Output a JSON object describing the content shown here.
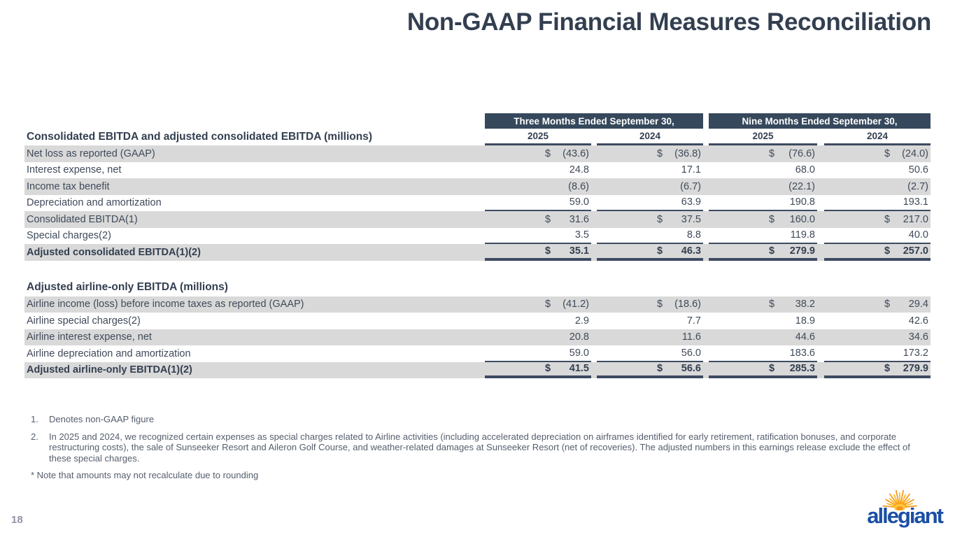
{
  "title": "Non-GAAP Financial Measures Reconciliation",
  "page_number": "18",
  "colors": {
    "navy_text": "#333F50",
    "header_bar_bg": "#36485C",
    "row_shade": "#D9D9D9",
    "rule_line": "#3D4B61",
    "logo_blue": "#1B4FA5",
    "sun_orange": "#F7941D",
    "sun_yellow": "#FDB913"
  },
  "table": {
    "period_headers": [
      "Three Months Ended September 30,",
      "Nine Months Ended September 30,"
    ],
    "year_headers": [
      "2025",
      "2024",
      "2025",
      "2024"
    ],
    "sections": [
      {
        "heading": "Consolidated EBITDA and adjusted consolidated EBITDA (millions)",
        "rows": [
          {
            "label": "Net loss as reported (GAAP)",
            "shaded": true,
            "bold": false,
            "dollar": true,
            "underline": "none",
            "values": [
              "(43.6)",
              "(36.8)",
              "(76.6)",
              "(24.0)"
            ]
          },
          {
            "label": "Interest expense, net",
            "shaded": false,
            "bold": false,
            "dollar": false,
            "underline": "none",
            "values": [
              "24.8",
              "17.1",
              "68.0",
              "50.6"
            ]
          },
          {
            "label": "Income tax benefit",
            "shaded": true,
            "bold": false,
            "dollar": false,
            "underline": "none",
            "values": [
              "(8.6)",
              "(6.7)",
              "(22.1)",
              "(2.7)"
            ]
          },
          {
            "label": "Depreciation and amortization",
            "shaded": false,
            "bold": false,
            "dollar": false,
            "underline": "single",
            "values": [
              "59.0",
              "63.9",
              "190.8",
              "193.1"
            ]
          },
          {
            "label": "Consolidated EBITDA(1)",
            "shaded": true,
            "bold": false,
            "dollar": true,
            "underline": "none",
            "values": [
              "31.6",
              "37.5",
              "160.0",
              "217.0"
            ]
          },
          {
            "label": "Special charges(2)",
            "shaded": false,
            "bold": false,
            "dollar": false,
            "underline": "single",
            "values": [
              "3.5",
              "8.8",
              "119.8",
              "40.0"
            ]
          },
          {
            "label": "Adjusted consolidated EBITDA(1)(2)",
            "shaded": true,
            "bold": true,
            "dollar": true,
            "underline": "total",
            "values": [
              "35.1",
              "46.3",
              "279.9",
              "257.0"
            ]
          }
        ]
      },
      {
        "heading": "Adjusted airline-only EBITDA (millions)",
        "rows": [
          {
            "label": "Airline income (loss) before income taxes as reported (GAAP)",
            "shaded": true,
            "bold": false,
            "dollar": true,
            "underline": "none",
            "values": [
              "(41.2)",
              "(18.6)",
              "38.2",
              "29.4"
            ]
          },
          {
            "label": "Airline special charges(2)",
            "shaded": false,
            "bold": false,
            "dollar": false,
            "underline": "none",
            "values": [
              "2.9",
              "7.7",
              "18.9",
              "42.6"
            ]
          },
          {
            "label": "Airline interest expense, net",
            "shaded": true,
            "bold": false,
            "dollar": false,
            "underline": "none",
            "values": [
              "20.8",
              "11.6",
              "44.6",
              "34.6"
            ]
          },
          {
            "label": "Airline depreciation and amortization",
            "shaded": false,
            "bold": false,
            "dollar": false,
            "underline": "single",
            "values": [
              "59.0",
              "56.0",
              "183.6",
              "173.2"
            ]
          },
          {
            "label": "Adjusted airline-only EBITDA(1)(2)",
            "shaded": true,
            "bold": true,
            "dollar": true,
            "underline": "total",
            "values": [
              "41.5",
              "56.6",
              "285.3",
              "279.9"
            ]
          }
        ]
      }
    ]
  },
  "footnotes": {
    "items": [
      {
        "marker": "1.",
        "text": "Denotes non-GAAP figure"
      },
      {
        "marker": "2.",
        "text": "In 2025 and 2024, we recognized certain expenses as special charges related to Airline activities (including accelerated depreciation on airframes identified for early retirement, ratification bonuses, and corporate restructuring costs), the sale of Sunseeker Resort and Aileron Golf Course, and weather-related damages at Sunseeker Resort (net of recoveries). The adjusted numbers in this earnings release exclude the effect of these special charges."
      }
    ],
    "note": "* Note that amounts may not recalculate due to rounding"
  },
  "logo": {
    "wordmark": "allegiant"
  }
}
